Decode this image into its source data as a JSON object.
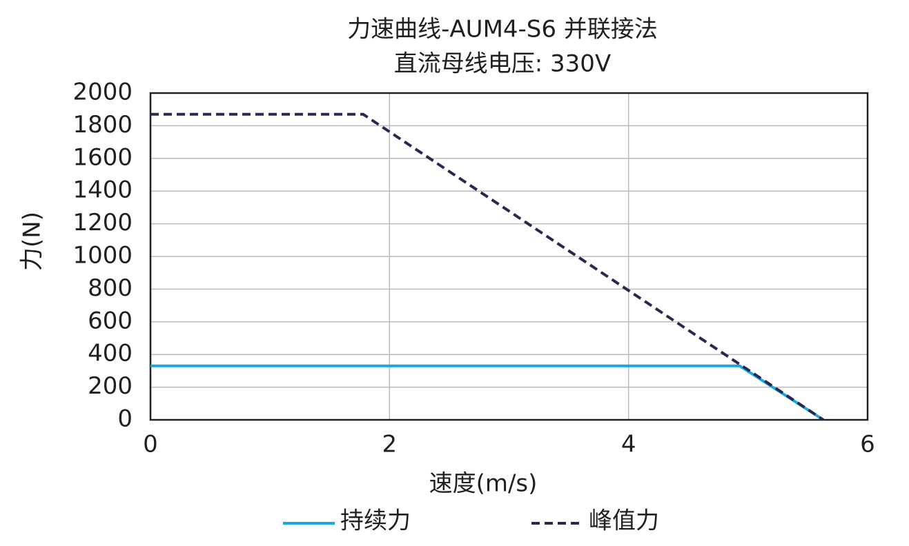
{
  "chart_data": {
    "type": "line",
    "title": "力速曲线-AUM4-S6 并联接法",
    "subtitle": "直流母线电压: 330V",
    "x_label": "速度(m/s)",
    "y_label": "力(N)",
    "xlim": [
      0,
      6
    ],
    "xticks": [
      0,
      2,
      4,
      6
    ],
    "ylim": [
      0,
      2000
    ],
    "yticks": [
      0,
      200,
      400,
      600,
      800,
      1000,
      1200,
      1400,
      1600,
      1800,
      2000
    ],
    "grid": true,
    "legend": "bottom",
    "series": [
      {
        "name": "持续力",
        "color": "#1aa7df",
        "dash": "solid",
        "x": [
          0,
          4.93,
          5.63
        ],
        "values": [
          330,
          330,
          0
        ]
      },
      {
        "name": "峰值力",
        "color": "#262a4f",
        "dash": "dashed",
        "x": [
          0,
          1.78,
          5.63
        ],
        "values": [
          1870,
          1870,
          0
        ]
      }
    ]
  }
}
